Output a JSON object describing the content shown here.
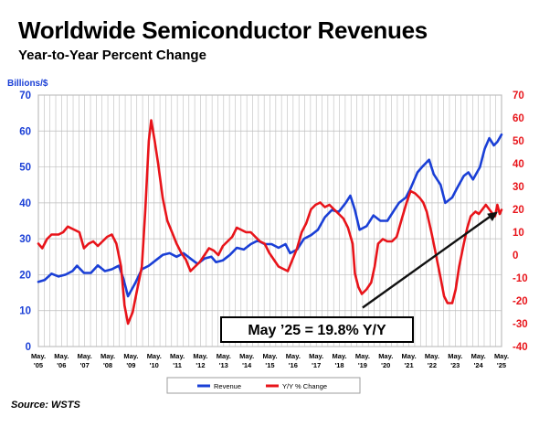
{
  "title": "Worldwide Semiconductor Revenues",
  "subtitle": "Year-to-Year Percent Change",
  "unit_label": "Billions/$",
  "source": "Source: WSTS",
  "annotation": "May ’25 = 19.8% Y/Y",
  "colors": {
    "revenue": "#1a3fd6",
    "yoy": "#e8141a",
    "axis_left": "#1a3fd6",
    "axis_right": "#e8141a",
    "grid": "#bdbdbd",
    "arrow": "#111111"
  },
  "chart_data": {
    "type": "line",
    "grid": true,
    "legend_position": "bottom-center",
    "y_left": {
      "label": "Billions/$",
      "range": [
        0,
        70
      ],
      "ticks": [
        0,
        10,
        20,
        30,
        40,
        50,
        60,
        70
      ]
    },
    "y_right": {
      "range": [
        -40,
        70
      ],
      "ticks": [
        -40,
        -30,
        -20,
        -10,
        0,
        10,
        20,
        30,
        40,
        50,
        60,
        70
      ]
    },
    "x_ticks": [
      {
        "month": "May.",
        "year": "'05",
        "t": 2005.33
      },
      {
        "month": "May.",
        "year": "'06",
        "t": 2006.33
      },
      {
        "month": "May.",
        "year": "'07",
        "t": 2007.33
      },
      {
        "month": "May.",
        "year": "'08",
        "t": 2008.33
      },
      {
        "month": "May.",
        "year": "'09",
        "t": 2009.33
      },
      {
        "month": "May.",
        "year": "'10",
        "t": 2010.33
      },
      {
        "month": "May.",
        "year": "'11",
        "t": 2011.33
      },
      {
        "month": "May.",
        "year": "'12",
        "t": 2012.33
      },
      {
        "month": "May.",
        "year": "'13",
        "t": 2013.33
      },
      {
        "month": "May.",
        "year": "'14",
        "t": 2014.33
      },
      {
        "month": "May.",
        "year": "'15",
        "t": 2015.33
      },
      {
        "month": "May.",
        "year": "'16",
        "t": 2016.33
      },
      {
        "month": "May.",
        "year": "'17",
        "t": 2017.33
      },
      {
        "month": "May.",
        "year": "'18",
        "t": 2018.33
      },
      {
        "month": "May.",
        "year": "'19",
        "t": 2019.33
      },
      {
        "month": "May.",
        "year": "'20",
        "t": 2020.33
      },
      {
        "month": "May.",
        "year": "'21",
        "t": 2021.33
      },
      {
        "month": "May.",
        "year": "'22",
        "t": 2022.33
      },
      {
        "month": "May.",
        "year": "'23",
        "t": 2023.33
      },
      {
        "month": "May.",
        "year": "'24",
        "t": 2024.33
      },
      {
        "month": "May.",
        "year": "'25",
        "t": 2025.33
      }
    ],
    "series": [
      {
        "name": "Revenue",
        "axis": "left",
        "points": [
          [
            2005.33,
            18
          ],
          [
            2005.6,
            18.5
          ],
          [
            2005.9,
            20.3
          ],
          [
            2006.2,
            19.5
          ],
          [
            2006.5,
            20
          ],
          [
            2006.8,
            21
          ],
          [
            2007.0,
            22.5
          ],
          [
            2007.3,
            20.5
          ],
          [
            2007.6,
            20.5
          ],
          [
            2007.9,
            22.6
          ],
          [
            2008.2,
            21
          ],
          [
            2008.5,
            21.5
          ],
          [
            2008.8,
            22.5
          ],
          [
            2009.0,
            19
          ],
          [
            2009.2,
            14
          ],
          [
            2009.5,
            17.5
          ],
          [
            2009.8,
            21.5
          ],
          [
            2010.1,
            22.5
          ],
          [
            2010.4,
            24
          ],
          [
            2010.7,
            25.5
          ],
          [
            2011.0,
            26
          ],
          [
            2011.3,
            25
          ],
          [
            2011.6,
            26
          ],
          [
            2011.9,
            24.5
          ],
          [
            2012.2,
            23
          ],
          [
            2012.5,
            24.5
          ],
          [
            2012.8,
            25
          ],
          [
            2013.0,
            23.5
          ],
          [
            2013.3,
            24
          ],
          [
            2013.6,
            25.5
          ],
          [
            2013.9,
            27.5
          ],
          [
            2014.2,
            27
          ],
          [
            2014.5,
            28.5
          ],
          [
            2014.8,
            29.5
          ],
          [
            2015.1,
            28.5
          ],
          [
            2015.4,
            28.5
          ],
          [
            2015.7,
            27.5
          ],
          [
            2016.0,
            28.5
          ],
          [
            2016.2,
            26
          ],
          [
            2016.5,
            27
          ],
          [
            2016.8,
            30
          ],
          [
            2017.1,
            31
          ],
          [
            2017.4,
            32.5
          ],
          [
            2017.7,
            36
          ],
          [
            2018.0,
            38
          ],
          [
            2018.3,
            37.5
          ],
          [
            2018.6,
            40
          ],
          [
            2018.8,
            42
          ],
          [
            2019.0,
            38
          ],
          [
            2019.2,
            32.5
          ],
          [
            2019.5,
            33.5
          ],
          [
            2019.8,
            36.5
          ],
          [
            2020.1,
            35
          ],
          [
            2020.4,
            35
          ],
          [
            2020.7,
            38
          ],
          [
            2020.9,
            40
          ],
          [
            2021.2,
            41.5
          ],
          [
            2021.4,
            44
          ],
          [
            2021.7,
            48.5
          ],
          [
            2021.9,
            50
          ],
          [
            2022.2,
            52
          ],
          [
            2022.4,
            48
          ],
          [
            2022.7,
            45
          ],
          [
            2022.9,
            40
          ],
          [
            2023.2,
            41.5
          ],
          [
            2023.4,
            44
          ],
          [
            2023.7,
            47.5
          ],
          [
            2023.9,
            48.5
          ],
          [
            2024.1,
            46.5
          ],
          [
            2024.4,
            50
          ],
          [
            2024.6,
            55
          ],
          [
            2024.8,
            58
          ],
          [
            2025.0,
            56
          ],
          [
            2025.15,
            57
          ],
          [
            2025.33,
            59
          ]
        ]
      },
      {
        "name": "Y/Y % Change",
        "axis": "right",
        "points": [
          [
            2005.33,
            5
          ],
          [
            2005.5,
            3
          ],
          [
            2005.7,
            7
          ],
          [
            2005.9,
            9
          ],
          [
            2006.2,
            9
          ],
          [
            2006.4,
            10
          ],
          [
            2006.6,
            12.5
          ],
          [
            2006.9,
            11
          ],
          [
            2007.1,
            10
          ],
          [
            2007.3,
            3
          ],
          [
            2007.5,
            5
          ],
          [
            2007.7,
            6
          ],
          [
            2007.9,
            4
          ],
          [
            2008.1,
            6
          ],
          [
            2008.3,
            8
          ],
          [
            2008.5,
            9
          ],
          [
            2008.7,
            5
          ],
          [
            2008.9,
            -5
          ],
          [
            2009.05,
            -22
          ],
          [
            2009.2,
            -30
          ],
          [
            2009.4,
            -25
          ],
          [
            2009.6,
            -15
          ],
          [
            2009.8,
            -5
          ],
          [
            2009.95,
            20
          ],
          [
            2010.1,
            50
          ],
          [
            2010.2,
            59
          ],
          [
            2010.35,
            50
          ],
          [
            2010.5,
            40
          ],
          [
            2010.7,
            25
          ],
          [
            2010.9,
            15
          ],
          [
            2011.1,
            10
          ],
          [
            2011.3,
            5
          ],
          [
            2011.5,
            1
          ],
          [
            2011.7,
            -2
          ],
          [
            2011.9,
            -7
          ],
          [
            2012.1,
            -5
          ],
          [
            2012.3,
            -3
          ],
          [
            2012.5,
            0
          ],
          [
            2012.7,
            3
          ],
          [
            2012.9,
            2
          ],
          [
            2013.1,
            0
          ],
          [
            2013.3,
            4
          ],
          [
            2013.5,
            6
          ],
          [
            2013.7,
            8
          ],
          [
            2013.9,
            12
          ],
          [
            2014.1,
            11
          ],
          [
            2014.3,
            10
          ],
          [
            2014.5,
            10
          ],
          [
            2014.7,
            8
          ],
          [
            2014.9,
            6
          ],
          [
            2015.1,
            5
          ],
          [
            2015.3,
            1
          ],
          [
            2015.5,
            -2
          ],
          [
            2015.7,
            -5
          ],
          [
            2015.9,
            -6
          ],
          [
            2016.1,
            -7
          ],
          [
            2016.3,
            -2
          ],
          [
            2016.5,
            3
          ],
          [
            2016.7,
            10
          ],
          [
            2016.9,
            14
          ],
          [
            2017.1,
            20
          ],
          [
            2017.3,
            22
          ],
          [
            2017.5,
            23
          ],
          [
            2017.7,
            21
          ],
          [
            2017.9,
            22
          ],
          [
            2018.1,
            20
          ],
          [
            2018.3,
            18
          ],
          [
            2018.5,
            16
          ],
          [
            2018.7,
            12
          ],
          [
            2018.9,
            5
          ],
          [
            2019.0,
            -8
          ],
          [
            2019.15,
            -14
          ],
          [
            2019.3,
            -17
          ],
          [
            2019.5,
            -15
          ],
          [
            2019.7,
            -12
          ],
          [
            2019.85,
            -5
          ],
          [
            2020.0,
            5
          ],
          [
            2020.2,
            7
          ],
          [
            2020.4,
            6
          ],
          [
            2020.6,
            6
          ],
          [
            2020.8,
            8
          ],
          [
            2021.0,
            15
          ],
          [
            2021.2,
            22
          ],
          [
            2021.4,
            28
          ],
          [
            2021.6,
            27
          ],
          [
            2021.8,
            25
          ],
          [
            2021.95,
            23
          ],
          [
            2022.1,
            19
          ],
          [
            2022.3,
            10
          ],
          [
            2022.5,
            0
          ],
          [
            2022.7,
            -10
          ],
          [
            2022.85,
            -18
          ],
          [
            2023.0,
            -21
          ],
          [
            2023.2,
            -21
          ],
          [
            2023.35,
            -15
          ],
          [
            2023.5,
            -5
          ],
          [
            2023.7,
            5
          ],
          [
            2023.85,
            12
          ],
          [
            2024.0,
            17
          ],
          [
            2024.2,
            19
          ],
          [
            2024.35,
            18
          ],
          [
            2024.5,
            20
          ],
          [
            2024.65,
            22
          ],
          [
            2024.8,
            20
          ],
          [
            2024.95,
            18
          ],
          [
            2025.05,
            17
          ],
          [
            2025.15,
            22
          ],
          [
            2025.25,
            18
          ],
          [
            2025.33,
            19.8
          ]
        ]
      }
    ],
    "trend_arrow": {
      "axis": "right",
      "from": [
        2019.33,
        -23
      ],
      "to": [
        2025.33,
        19
      ]
    }
  }
}
